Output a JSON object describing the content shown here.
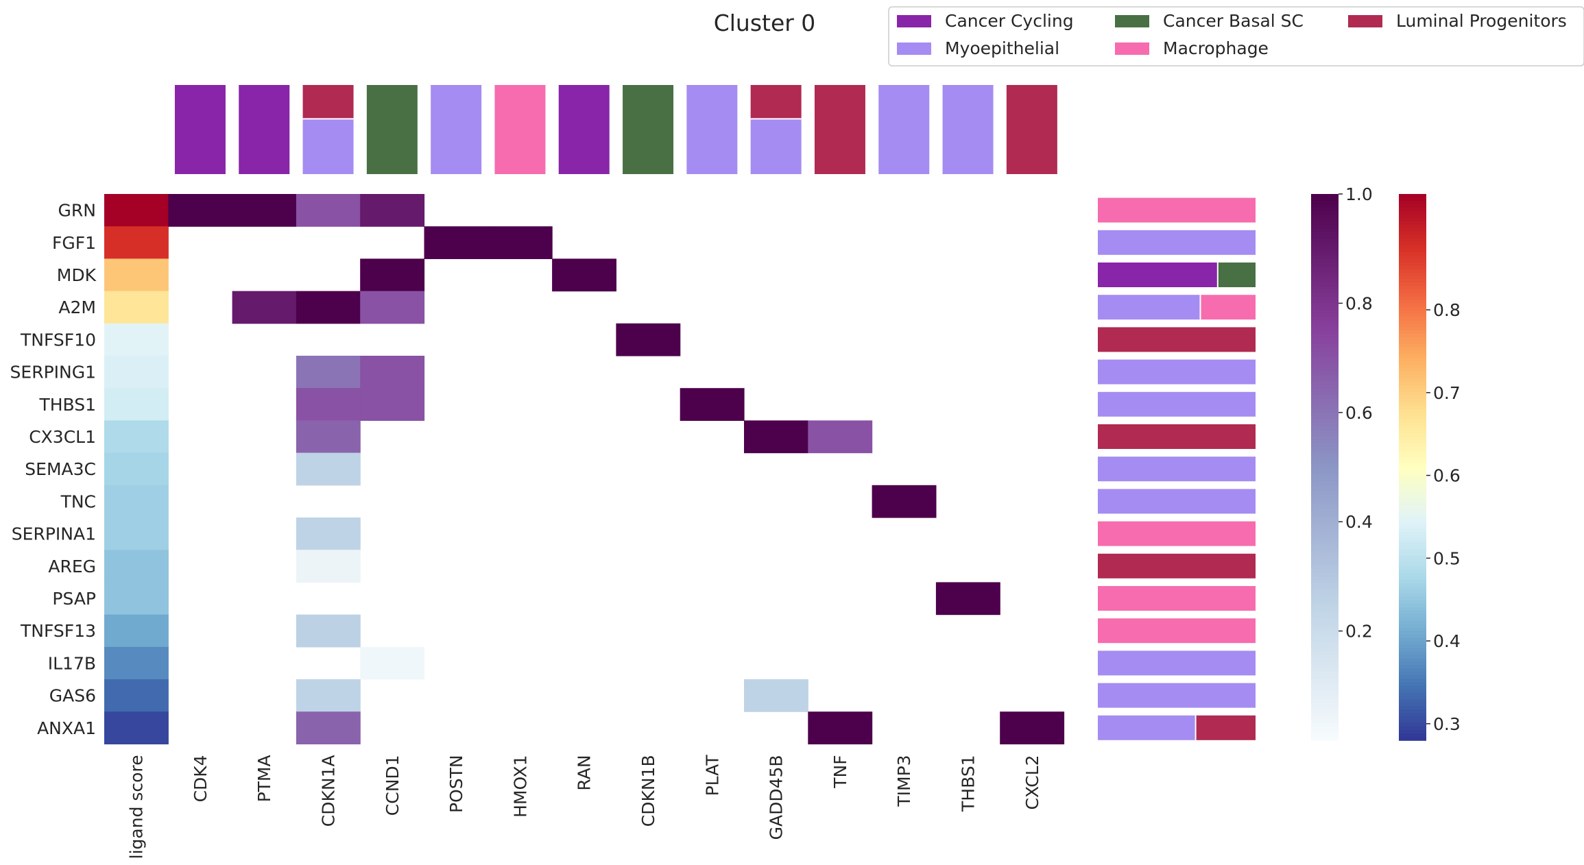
{
  "chart_data": {
    "type": "heatmap",
    "title": "Cluster 0",
    "ligands": [
      "GRN",
      "FGF1",
      "MDK",
      "A2M",
      "TNFSF10",
      "SERPING1",
      "THBS1",
      "CX3CL1",
      "SEMA3C",
      "TNC",
      "SERPINA1",
      "AREG",
      "PSAP",
      "TNFSF13",
      "IL17B",
      "GAS6",
      "ANXA1"
    ],
    "ligand_score_label": "ligand score",
    "ligand_scores": [
      1.0,
      0.93,
      0.75,
      0.7,
      0.57,
      0.56,
      0.55,
      0.5,
      0.49,
      0.48,
      0.48,
      0.46,
      0.46,
      0.42,
      0.38,
      0.34,
      0.3
    ],
    "ligand_score_range": [
      0.28,
      1.0
    ],
    "targets": [
      "CDK4",
      "PTMA",
      "CDKN1A",
      "CCND1",
      "POSTN",
      "HMOX1",
      "RAN",
      "CDKN1B",
      "PLAT",
      "GADD45B",
      "TNF",
      "TIMP3",
      "THBS1",
      "CXCL2"
    ],
    "regulatory_matrix": [
      [
        1.0,
        1.0,
        0.7,
        0.9,
        0,
        0,
        0,
        0,
        0,
        0,
        0,
        0,
        0,
        0
      ],
      [
        0,
        0,
        0,
        0,
        1.0,
        1.0,
        0,
        0,
        0,
        0,
        0,
        0,
        0,
        0
      ],
      [
        0,
        0,
        0,
        1.0,
        0,
        0,
        1.0,
        0,
        0,
        0,
        0,
        0,
        0,
        0
      ],
      [
        0,
        0.9,
        1.0,
        0.7,
        0,
        0,
        0,
        0,
        0,
        0,
        0,
        0,
        0,
        0
      ],
      [
        0,
        0,
        0,
        0,
        0,
        0,
        0,
        1.0,
        0,
        0,
        0,
        0,
        0,
        0
      ],
      [
        0,
        0,
        0.6,
        0.7,
        0,
        0,
        0,
        0,
        0,
        0,
        0,
        0,
        0,
        0
      ],
      [
        0,
        0,
        0.7,
        0.7,
        0,
        0,
        0,
        0,
        1.0,
        0,
        0,
        0,
        0,
        0
      ],
      [
        0,
        0,
        0.65,
        0,
        0,
        0,
        0,
        0,
        0,
        1.0,
        0.7,
        0,
        0,
        0
      ],
      [
        0,
        0,
        0.25,
        0,
        0,
        0,
        0,
        0,
        0,
        0,
        0,
        0,
        0,
        0
      ],
      [
        0,
        0,
        0,
        0,
        0,
        0,
        0,
        0,
        0,
        0,
        0,
        1.0,
        0,
        0
      ],
      [
        0,
        0,
        0.25,
        0,
        0,
        0,
        0,
        0,
        0,
        0,
        0,
        0,
        0,
        0
      ],
      [
        0,
        0,
        0.05,
        0,
        0,
        0,
        0,
        0,
        0,
        0,
        0,
        0,
        0,
        0
      ],
      [
        0,
        0,
        0,
        0,
        0,
        0,
        0,
        0,
        0,
        0,
        0,
        0,
        1.0,
        0
      ],
      [
        0,
        0,
        0.26,
        0,
        0,
        0,
        0,
        0,
        0,
        0,
        0,
        0,
        0,
        0
      ],
      [
        0,
        0,
        0,
        0.03,
        0,
        0,
        0,
        0,
        0,
        0,
        0,
        0,
        0,
        0
      ],
      [
        0,
        0,
        0.25,
        0,
        0,
        0,
        0,
        0,
        0,
        0.25,
        0,
        0,
        0,
        0
      ],
      [
        0,
        0,
        0.65,
        0,
        0,
        0,
        0,
        0,
        0,
        0,
        1.0,
        0,
        0,
        1.0
      ]
    ],
    "legend": {
      "placement": "top-right",
      "entries": [
        {
          "name": "Cancer Cycling",
          "color": "#8825a8"
        },
        {
          "name": "Myoepithelial",
          "color": "#a58cf2"
        },
        {
          "name": "Cancer Basal SC",
          "color": "#487044"
        },
        {
          "name": "Macrophage",
          "color": "#f66cae"
        },
        {
          "name": "Luminal Progenitors",
          "color": "#b02a52"
        }
      ]
    },
    "target_cell_types": [
      [
        {
          "type": "Cancer Cycling",
          "fraction": 1.0
        }
      ],
      [
        {
          "type": "Cancer Cycling",
          "fraction": 1.0
        }
      ],
      [
        {
          "type": "Luminal Progenitors",
          "fraction": 0.38
        },
        {
          "type": "Myoepithelial",
          "fraction": 0.62
        }
      ],
      [
        {
          "type": "Cancer Basal SC",
          "fraction": 1.0
        }
      ],
      [
        {
          "type": "Myoepithelial",
          "fraction": 1.0
        }
      ],
      [
        {
          "type": "Macrophage",
          "fraction": 1.0
        }
      ],
      [
        {
          "type": "Cancer Cycling",
          "fraction": 1.0
        }
      ],
      [
        {
          "type": "Cancer Basal SC",
          "fraction": 1.0
        }
      ],
      [
        {
          "type": "Myoepithelial",
          "fraction": 1.0
        }
      ],
      [
        {
          "type": "Luminal Progenitors",
          "fraction": 0.38
        },
        {
          "type": "Myoepithelial",
          "fraction": 0.62
        }
      ],
      [
        {
          "type": "Luminal Progenitors",
          "fraction": 1.0
        }
      ],
      [
        {
          "type": "Myoepithelial",
          "fraction": 1.0
        }
      ],
      [
        {
          "type": "Myoepithelial",
          "fraction": 1.0
        }
      ],
      [
        {
          "type": "Luminal Progenitors",
          "fraction": 1.0
        }
      ]
    ],
    "ligand_cell_types": [
      [
        {
          "type": "Macrophage",
          "fraction": 1.0
        }
      ],
      [
        {
          "type": "Myoepithelial",
          "fraction": 1.0
        }
      ],
      [
        {
          "type": "Cancer Cycling",
          "fraction": 0.76
        },
        {
          "type": "Cancer Basal SC",
          "fraction": 0.24
        }
      ],
      [
        {
          "type": "Myoepithelial",
          "fraction": 0.65
        },
        {
          "type": "Macrophage",
          "fraction": 0.35
        }
      ],
      [
        {
          "type": "Luminal Progenitors",
          "fraction": 1.0
        }
      ],
      [
        {
          "type": "Myoepithelial",
          "fraction": 1.0
        }
      ],
      [
        {
          "type": "Myoepithelial",
          "fraction": 1.0
        }
      ],
      [
        {
          "type": "Luminal Progenitors",
          "fraction": 1.0
        }
      ],
      [
        {
          "type": "Myoepithelial",
          "fraction": 1.0
        }
      ],
      [
        {
          "type": "Myoepithelial",
          "fraction": 1.0
        }
      ],
      [
        {
          "type": "Macrophage",
          "fraction": 1.0
        }
      ],
      [
        {
          "type": "Luminal Progenitors",
          "fraction": 1.0
        }
      ],
      [
        {
          "type": "Macrophage",
          "fraction": 1.0
        }
      ],
      [
        {
          "type": "Macrophage",
          "fraction": 1.0
        }
      ],
      [
        {
          "type": "Myoepithelial",
          "fraction": 1.0
        }
      ],
      [
        {
          "type": "Myoepithelial",
          "fraction": 1.0
        }
      ],
      [
        {
          "type": "Myoepithelial",
          "fraction": 0.62
        },
        {
          "type": "Luminal Progenitors",
          "fraction": 0.38
        }
      ]
    ],
    "colorbar_regulatory": {
      "range": [
        0.0,
        1.0
      ],
      "ticks": [
        0.2,
        0.4,
        0.6,
        0.8,
        1.0
      ],
      "tick_labels": [
        "0.2",
        "0.4",
        "0.6",
        "0.8",
        "1.0"
      ],
      "colors": [
        "#f7fcfd",
        "#bfd3e6",
        "#8c96c6",
        "#88419d",
        "#4d004b"
      ]
    },
    "colorbar_score": {
      "range": [
        0.28,
        0.94
      ],
      "ticks": [
        0.3,
        0.4,
        0.5,
        0.6,
        0.7,
        0.8
      ],
      "tick_labels": [
        "0.3",
        "0.4",
        "0.5",
        "0.6",
        "0.7",
        "0.8"
      ],
      "colors": [
        "#313695",
        "#4575b4",
        "#74add1",
        "#abd9e9",
        "#e0f3f8",
        "#ffffbf",
        "#fee090",
        "#fdae61",
        "#f46d43",
        "#d73027",
        "#a50026"
      ]
    }
  }
}
